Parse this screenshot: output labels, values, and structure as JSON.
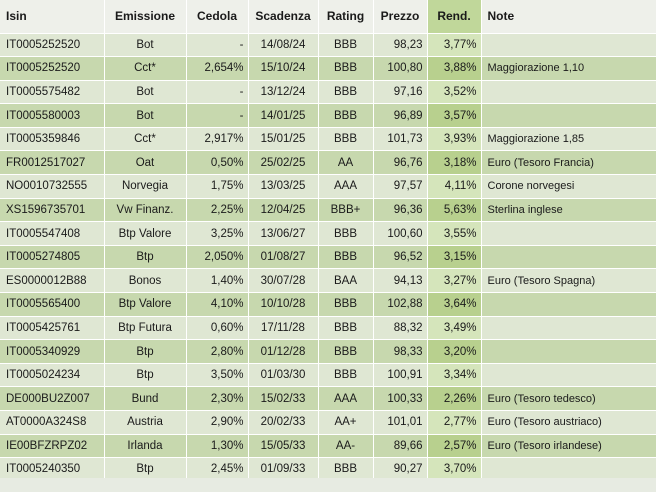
{
  "table": {
    "columns": [
      "Isin",
      "Emissione",
      "Cedola",
      "Scadenza",
      "Rating",
      "Prezzo",
      "Rend.",
      "Note"
    ],
    "rows": [
      [
        "IT0005252520",
        "Bot",
        "-",
        "14/08/24",
        "BBB",
        "98,23",
        "3,77%",
        ""
      ],
      [
        "IT0005252520",
        "Cct*",
        "2,654%",
        "15/10/24",
        "BBB",
        "100,80",
        "3,88%",
        "Maggiorazione 1,10"
      ],
      [
        "IT0005575482",
        "Bot",
        "-",
        "13/12/24",
        "BBB",
        "97,16",
        "3,52%",
        ""
      ],
      [
        "IT0005580003",
        "Bot",
        "-",
        "14/01/25",
        "BBB",
        "96,89",
        "3,57%",
        ""
      ],
      [
        "IT0005359846",
        "Cct*",
        "2,917%",
        "15/01/25",
        "BBB",
        "101,73",
        "3,93%",
        "Maggiorazione 1,85"
      ],
      [
        "FR0012517027",
        "Oat",
        "0,50%",
        "25/02/25",
        "AA",
        "96,76",
        "3,18%",
        "Euro (Tesoro Francia)"
      ],
      [
        "NO0010732555",
        "Norvegia",
        "1,75%",
        "13/03/25",
        "AAA",
        "97,57",
        "4,11%",
        "Corone norvegesi"
      ],
      [
        "XS1596735701",
        "Vw Finanz.",
        "2,25%",
        "12/04/25",
        "BBB+",
        "96,36",
        "5,63%",
        "Sterlina inglese"
      ],
      [
        "IT0005547408",
        "Btp Valore",
        "3,25%",
        "13/06/27",
        "BBB",
        "100,60",
        "3,55%",
        ""
      ],
      [
        "IT0005274805",
        "Btp",
        "2,050%",
        "01/08/27",
        "BBB",
        "96,52",
        "3,15%",
        ""
      ],
      [
        "ES0000012B88",
        "Bonos",
        "1,40%",
        "30/07/28",
        "BAA",
        "94,13",
        "3,27%",
        "Euro (Tesoro Spagna)"
      ],
      [
        "IT0005565400",
        "Btp Valore",
        "4,10%",
        "10/10/28",
        "BBB",
        "102,88",
        "3,64%",
        ""
      ],
      [
        "IT0005425761",
        "Btp Futura",
        "0,60%",
        "17/11/28",
        "BBB",
        "88,32",
        "3,49%",
        ""
      ],
      [
        "IT0005340929",
        "Btp",
        "2,80%",
        "01/12/28",
        "BBB",
        "98,33",
        "3,20%",
        ""
      ],
      [
        "IT0005024234",
        "Btp",
        "3,50%",
        "01/03/30",
        "BBB",
        "100,91",
        "3,34%",
        ""
      ],
      [
        "DE000BU2Z007",
        "Bund",
        "2,30%",
        "15/02/33",
        "AAA",
        "100,33",
        "2,26%",
        "Euro (Tesoro tedesco)"
      ],
      [
        "AT0000A324S8",
        "Austria",
        "2,90%",
        "20/02/33",
        "AA+",
        "101,01",
        "2,77%",
        "Euro (Tesoro austriaco)"
      ],
      [
        "IE00BFZRPZ02",
        "Irlanda",
        "1,30%",
        "15/05/33",
        "AA-",
        "89,66",
        "2,57%",
        "Euro (Tesoro irlandese)"
      ],
      [
        "IT0005240350",
        "Btp",
        "2,45%",
        "01/09/33",
        "BBB",
        "90,27",
        "3,70%",
        ""
      ]
    ]
  },
  "colors": {
    "header_bg": "#eef0ea",
    "row_light": "#dfe7d3",
    "row_dark": "#c7d8ae",
    "highlight_column": "#c0d79a"
  }
}
